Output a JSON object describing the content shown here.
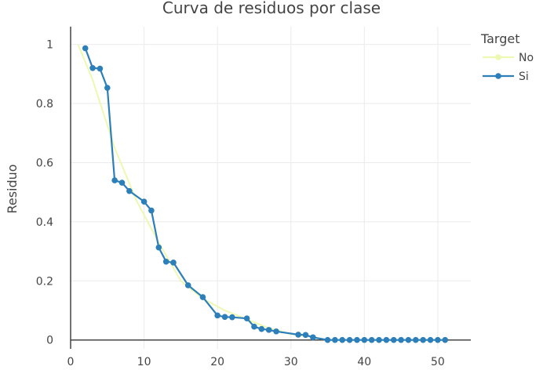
{
  "chart_data": {
    "type": "line",
    "title": "Curva de residuos por clase",
    "xlabel": "",
    "ylabel": "Residuo",
    "xlim": [
      0,
      54.5
    ],
    "ylim": [
      -0.03,
      1.06
    ],
    "x_ticks": [
      0,
      10,
      20,
      30,
      40,
      50
    ],
    "y_ticks": [
      0,
      0.2,
      0.4,
      0.6,
      0.8,
      1
    ],
    "y_tick_labels": [
      "0",
      "0.2",
      "0.4",
      "0.6",
      "0.8",
      "1"
    ],
    "grid": true,
    "legend": {
      "title": "Target",
      "position": "top-right"
    },
    "series": [
      {
        "name": "No",
        "color": "#edf8b1",
        "markers": false,
        "x": [
          1,
          3,
          6,
          9,
          12,
          15,
          18,
          21,
          24,
          27,
          30,
          33,
          35
        ],
        "y": [
          1.0,
          0.88,
          0.65,
          0.47,
          0.33,
          0.2,
          0.14,
          0.1,
          0.07,
          0.04,
          0.02,
          0.01,
          0.0
        ]
      },
      {
        "name": "Si",
        "color": "#2c7fb8",
        "markers": true,
        "x": [
          2,
          3,
          4,
          5,
          6,
          7,
          8,
          10,
          11,
          12,
          13,
          14,
          16,
          18,
          20,
          21,
          22,
          24,
          25,
          26,
          27,
          28,
          31,
          32,
          33,
          35,
          36,
          37,
          38,
          39,
          40,
          41,
          42,
          43,
          44,
          45,
          46,
          47,
          48,
          49,
          50,
          51
        ],
        "y": [
          0.987,
          0.92,
          0.918,
          0.853,
          0.54,
          0.532,
          0.504,
          0.468,
          0.438,
          0.313,
          0.265,
          0.262,
          0.185,
          0.145,
          0.083,
          0.078,
          0.077,
          0.073,
          0.045,
          0.037,
          0.034,
          0.029,
          0.018,
          0.017,
          0.009,
          0,
          0,
          0,
          0,
          0,
          0,
          0,
          0,
          0,
          0,
          0,
          0,
          0,
          0,
          0,
          0,
          0
        ]
      }
    ]
  }
}
